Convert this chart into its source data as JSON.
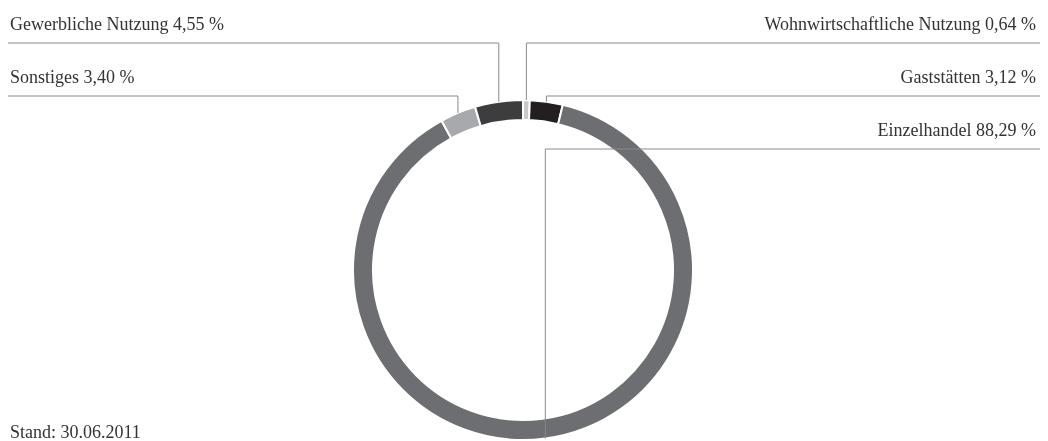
{
  "chart_data": {
    "type": "donut",
    "categories": [
      "Wohnwirtschaftliche Nutzung",
      "Gaststätten",
      "Einzelhandel",
      "Sonstiges",
      "Gewerbliche Nutzung"
    ],
    "values": [
      0.64,
      3.12,
      88.29,
      3.4,
      4.55
    ],
    "colors": [
      "#c8c9cb",
      "#231f20",
      "#6d6e71",
      "#a7a9ac",
      "#3d3d3f"
    ],
    "value_labels": [
      "0,64 %",
      "3,12 %",
      "88,29 %",
      "3,40 %",
      "4,55 %"
    ],
    "annotations": [
      "Stand: 30.06.2011"
    ]
  }
}
